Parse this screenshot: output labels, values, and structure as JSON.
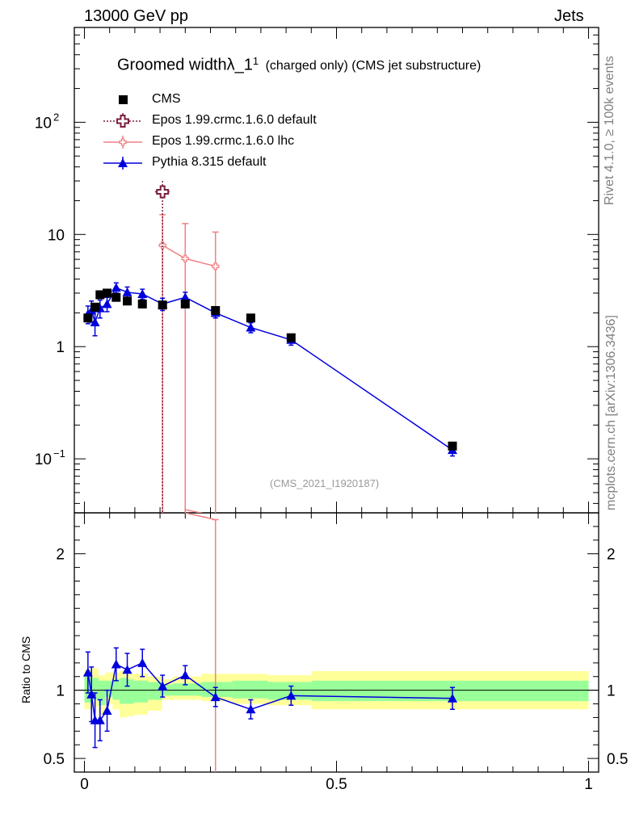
{
  "header": {
    "left_label": "13000 GeV pp",
    "right_label": "Jets"
  },
  "side_labels": {
    "rivet": "Rivet 4.1.0, ≥ 100k events",
    "mcplots": "mcplots.cern.ch [arXiv:1306.3436]"
  },
  "title": {
    "main": "Groomed width",
    "symbol": "λ_1",
    "superscript": "1",
    "suffix": "(charged only) (CMS jet substructure)"
  },
  "watermark": "(CMS_2021_I1920187)",
  "ratio_ylabel": "Ratio to CMS",
  "legend": [
    {
      "label": "CMS",
      "color": "#000000",
      "marker": "square"
    },
    {
      "label": "Epos 1.99.crmc.1.6.0 default",
      "color": "#7a1f3d",
      "marker": "open-cross"
    },
    {
      "label": "Epos 1.99.crmc.1.6.0 lhc",
      "color": "#f08080",
      "marker": "open-cross-small"
    },
    {
      "label": "Pythia 8.315 default",
      "color": "#0000dd",
      "marker": "triangle"
    }
  ],
  "chart_data": {
    "type": "scatter",
    "xlim": [
      -0.02,
      1.02
    ],
    "main_ylim_log": [
      0.033,
      700
    ],
    "ratio_ylim": [
      0.4,
      2.3
    ],
    "x_ticks": [
      0,
      0.5,
      1
    ],
    "x_tick_labels": [
      "0",
      "0.5",
      "1"
    ],
    "main_y_ticks": [
      0.1,
      1,
      10,
      100
    ],
    "main_y_tick_labels": [
      "10",
      "1",
      "10",
      "10"
    ],
    "main_y_tick_exponents": [
      "−1",
      "",
      "",
      "2"
    ],
    "ratio_y_ticks": [
      0.5,
      1,
      2
    ],
    "ratio_y_tick_labels": [
      "0.5",
      "1",
      "2"
    ],
    "series": [
      {
        "name": "CMS",
        "x": [
          0.007,
          0.021,
          0.031,
          0.045,
          0.063,
          0.085,
          0.115,
          0.155,
          0.2,
          0.26,
          0.33,
          0.41,
          0.73
        ],
        "y": [
          1.8,
          2.25,
          2.9,
          3.0,
          2.75,
          2.55,
          2.4,
          2.35,
          2.4,
          2.1,
          1.8,
          1.2,
          0.13
        ]
      },
      {
        "name": "Epos 1.99.crmc.1.6.0 default",
        "x": [
          0.155
        ],
        "y": [
          24
        ],
        "yerr_lo": [
          0.034
        ],
        "yerr_hi": [
          30
        ],
        "xerr": [
          0.015
        ]
      },
      {
        "name": "Epos 1.99.crmc.1.6.0 lhc",
        "x": [
          0.155,
          0.2,
          0.26
        ],
        "y": [
          8.0,
          6.1,
          5.2
        ],
        "yerr_hi": [
          15,
          12.5,
          10.5
        ],
        "ratio_x_end": 0.26,
        "ratio_y_end": 2.25
      },
      {
        "name": "Pythia 8.315 default",
        "x": [
          0.007,
          0.014,
          0.021,
          0.031,
          0.045,
          0.063,
          0.085,
          0.115,
          0.155,
          0.2,
          0.26,
          0.33,
          0.41,
          0.73
        ],
        "y": [
          1.95,
          2.1,
          1.65,
          2.2,
          2.4,
          3.35,
          3.05,
          2.95,
          2.4,
          2.75,
          2.0,
          1.48,
          1.15,
          0.12
        ],
        "yerr": [
          0.35,
          0.45,
          0.4,
          0.4,
          0.35,
          0.35,
          0.35,
          0.3,
          0.3,
          0.3,
          0.2,
          0.15,
          0.12,
          0.014
        ],
        "ratio": [
          1.13,
          0.97,
          0.78,
          0.78,
          0.85,
          1.19,
          1.15,
          1.2,
          1.03,
          1.11,
          0.95,
          0.86,
          0.96,
          0.94
        ],
        "ratio_err": [
          0.15,
          0.2,
          0.2,
          0.15,
          0.15,
          0.12,
          0.12,
          0.1,
          0.08,
          0.07,
          0.07,
          0.07,
          0.07,
          0.08
        ]
      }
    ],
    "uncertainty_bands": {
      "edges": [
        0,
        0.014,
        0.028,
        0.042,
        0.056,
        0.07,
        0.084,
        0.098,
        0.126,
        0.154,
        0.175,
        0.232,
        0.293,
        0.364,
        0.451,
        1.0
      ],
      "stat_lo": [
        0.91,
        0.93,
        0.89,
        0.95,
        0.93,
        0.9,
        0.9,
        0.91,
        0.93,
        0.96,
        0.96,
        0.95,
        0.94,
        0.93,
        0.92
      ],
      "stat_hi": [
        1.1,
        1.09,
        1.07,
        1.07,
        1.08,
        1.09,
        1.08,
        1.07,
        1.06,
        1.04,
        1.05,
        1.06,
        1.07,
        1.06,
        1.07
      ],
      "total_lo": [
        0.86,
        0.88,
        0.82,
        0.9,
        0.86,
        0.8,
        0.81,
        0.82,
        0.85,
        0.93,
        0.93,
        0.92,
        0.9,
        0.89,
        0.86
      ],
      "total_hi": [
        1.15,
        1.16,
        1.11,
        1.13,
        1.13,
        1.14,
        1.12,
        1.12,
        1.1,
        1.08,
        1.1,
        1.12,
        1.12,
        1.11,
        1.14
      ]
    }
  }
}
